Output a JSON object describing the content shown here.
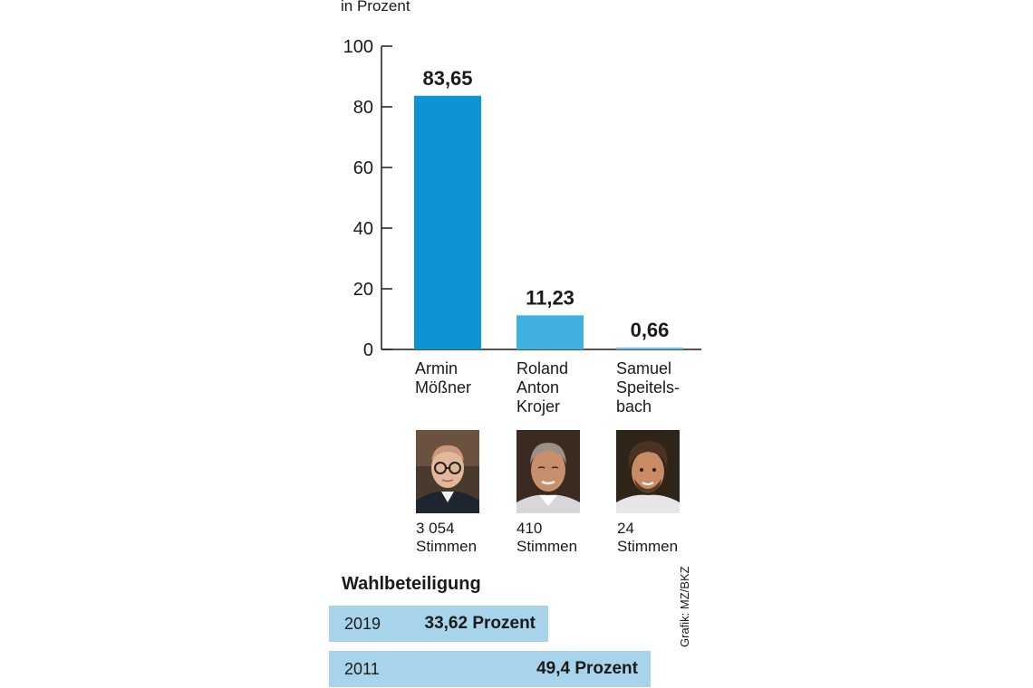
{
  "unit_label": "in Prozent",
  "chart_data": {
    "type": "bar",
    "categories": [
      "Armin Mößner",
      "Roland Anton Krojer",
      "Samuel Speitelsbach"
    ],
    "values": [
      83.65,
      11.23,
      0.66
    ],
    "value_labels": [
      "83,65",
      "11,23",
      "0,66"
    ],
    "ylim": [
      0,
      100
    ],
    "yticks": [
      0,
      20,
      40,
      60,
      80,
      100
    ],
    "ytick_labels": [
      "0",
      "20",
      "40",
      "60",
      "80",
      "100"
    ],
    "colors": [
      "#0e93d4",
      "#3fb0e0",
      "#6ec3e8"
    ],
    "grid": false
  },
  "candidates": [
    {
      "name_lines": [
        "Armin",
        "Mößner"
      ],
      "votes_number": "3 054",
      "votes_word": "Stimmen"
    },
    {
      "name_lines": [
        "Roland",
        "Anton",
        "Krojer"
      ],
      "votes_number": "410",
      "votes_word": "Stimmen"
    },
    {
      "name_lines": [
        "Samuel",
        "Speitels-",
        "bach"
      ],
      "votes_number": "24",
      "votes_word": "Stimmen"
    }
  ],
  "turnout": {
    "title": "Wahlbeteiligung",
    "rows": [
      {
        "year": "2019",
        "label": "33,62 Prozent",
        "value": 33.62
      },
      {
        "year": "2011",
        "label": "49,4 Prozent",
        "value": 49.4
      }
    ],
    "color": "#a7d4ea"
  },
  "credit": "Grafik: MZ/BKZ"
}
